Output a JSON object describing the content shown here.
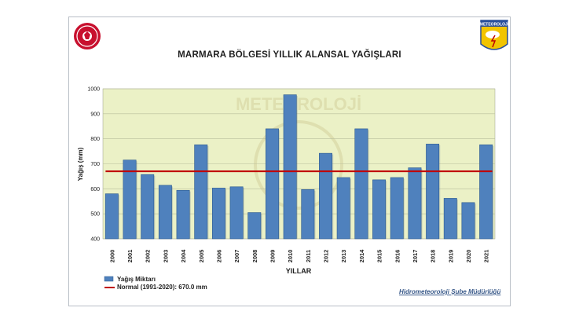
{
  "chart_data": {
    "type": "bar",
    "title": "MARMARA BÖLGESİ  YILLIK ALANSAL YAĞIŞLARI",
    "xlabel": "YILLAR",
    "ylabel": "Yağış (mm)",
    "ylim": [
      400,
      1000
    ],
    "yticks": [
      400,
      500,
      600,
      700,
      800,
      900,
      1000
    ],
    "categories": [
      "2000",
      "2001",
      "2002",
      "2003",
      "2004",
      "2005",
      "2006",
      "2007",
      "2008",
      "2009",
      "2010",
      "2011",
      "2012",
      "2013",
      "2014",
      "2015",
      "2016",
      "2017",
      "2018",
      "2019",
      "2020",
      "2021"
    ],
    "series": [
      {
        "name": "Yağış Miktarı",
        "values": [
          580,
          715,
          657,
          614,
          594,
          776,
          603,
          608,
          505,
          840,
          976,
          597,
          742,
          645,
          840,
          636,
          645,
          684,
          779,
          562,
          545,
          776
        ],
        "color": "#4f81bd"
      }
    ],
    "reference_line": {
      "name": "Normal (1991-2020): 670.0 mm",
      "value": 670,
      "color": "#c00000"
    },
    "grid": true,
    "legend": "bottom-left",
    "plot_background": "#ebf1c6"
  },
  "credit": "Hidrometeoroloji Şube Müdürlüğü",
  "logos": {
    "right_badge_text": "METEOROLOJİ",
    "watermark_text": "METEOROLOJİ"
  }
}
